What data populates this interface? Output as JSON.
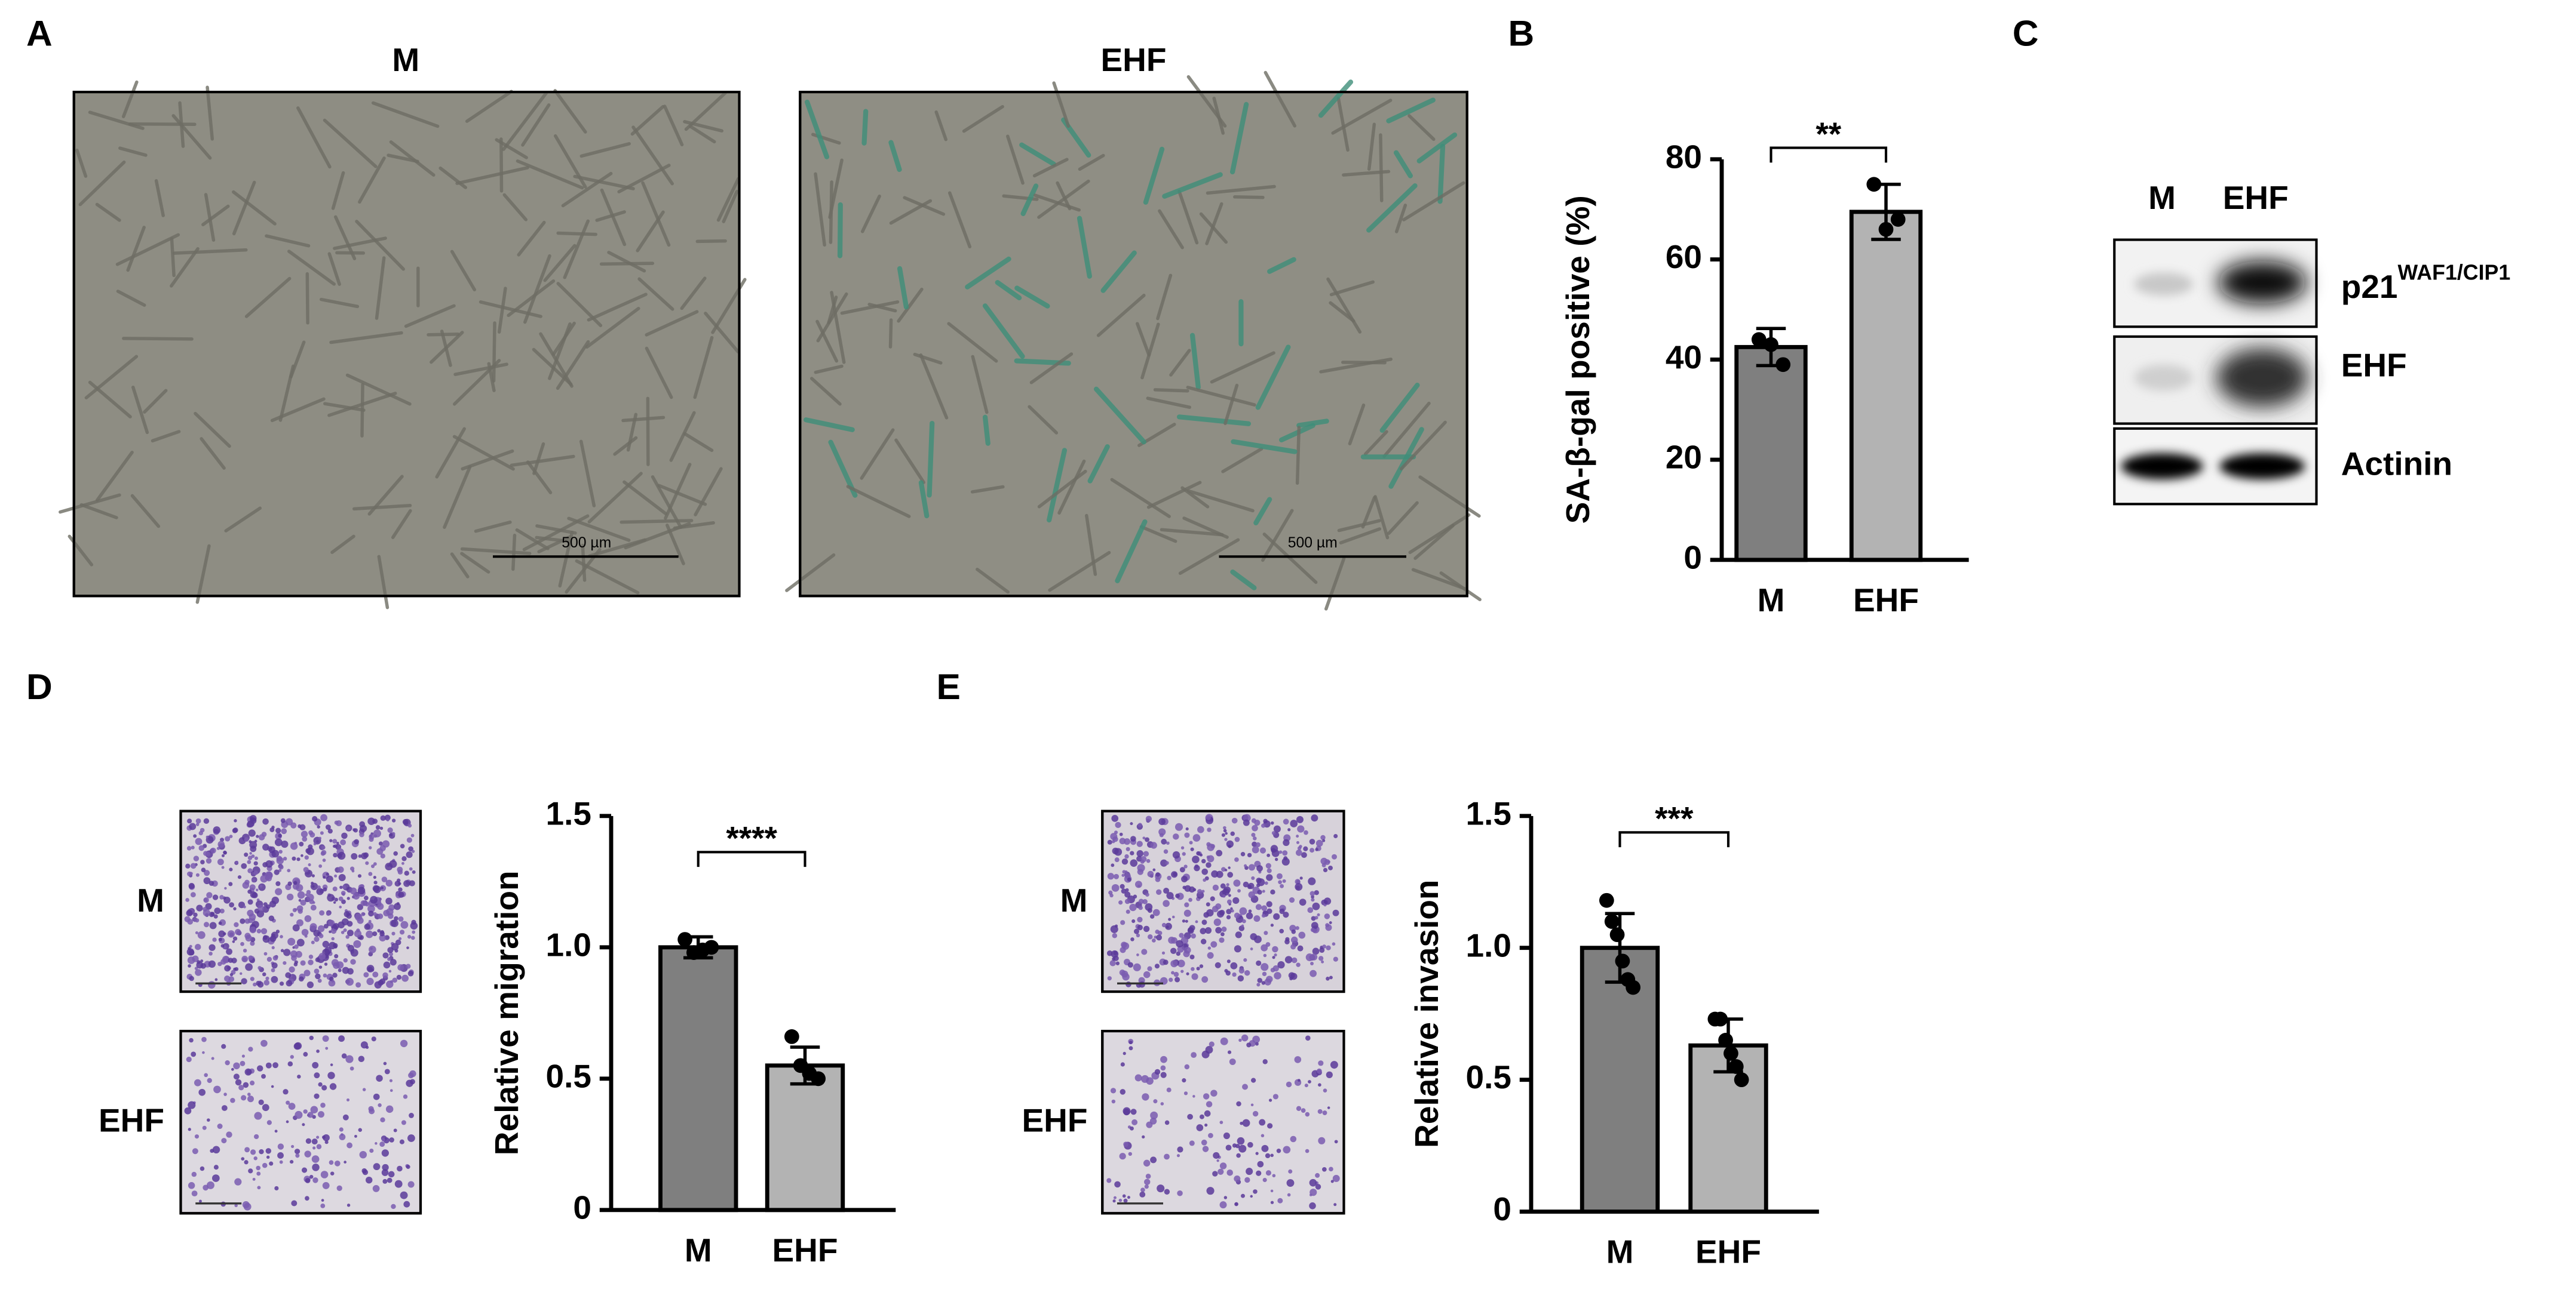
{
  "panel_labels": [
    "A",
    "B",
    "C",
    "D",
    "E"
  ],
  "panel_a": {
    "images": [
      {
        "label": "M",
        "scale_bar": "500 µm"
      },
      {
        "label": "EHF",
        "scale_bar": "500 µm"
      }
    ]
  },
  "panel_c": {
    "lanes": [
      "M",
      "EHF"
    ],
    "bands": [
      {
        "label": "p21",
        "superscript": "WAF1/CIP1"
      },
      {
        "label": "EHF"
      },
      {
        "label": "Actinin"
      }
    ]
  },
  "panel_d": {
    "images": [
      "M",
      "EHF"
    ]
  },
  "panel_e": {
    "images": [
      "M",
      "EHF"
    ]
  },
  "chart_data": [
    {
      "type": "bar",
      "ylabel": "SA-β-gal positive (%)",
      "categories": [
        "M",
        "EHF"
      ],
      "values": [
        42.5,
        69.5
      ],
      "errors": [
        3.7,
        5.5
      ],
      "points": [
        [
          44,
          43,
          39
        ],
        [
          75,
          66,
          68
        ]
      ],
      "colors": [
        "#7f7f7f",
        "#b3b3b3"
      ],
      "ylim": [
        0,
        80
      ],
      "yticks": [
        0,
        20,
        40,
        60,
        80
      ],
      "significance": "**"
    },
    {
      "type": "bar",
      "ylabel": "Relative migration",
      "categories": [
        "M",
        "EHF"
      ],
      "values": [
        1.0,
        0.55
      ],
      "errors": [
        0.04,
        0.07
      ],
      "points": [
        [
          1.03,
          0.98,
          0.99,
          1.0
        ],
        [
          0.66,
          0.55,
          0.52,
          0.5
        ]
      ],
      "colors": [
        "#7f7f7f",
        "#b3b3b3"
      ],
      "ylim": [
        0,
        1.5
      ],
      "yticks": [
        0,
        0.5,
        {
          "value": 1,
          "label": "1.0"
        },
        1.5
      ],
      "significance": "****"
    },
    {
      "type": "bar",
      "ylabel": "Relative invasion",
      "categories": [
        "M",
        "EHF"
      ],
      "values": [
        1.0,
        0.63
      ],
      "errors": [
        0.13,
        0.1
      ],
      "points": [
        [
          1.18,
          1.1,
          1.05,
          0.95,
          0.88,
          0.85
        ],
        [
          0.73,
          0.73,
          0.65,
          0.6,
          0.55,
          0.5
        ]
      ],
      "colors": [
        "#7f7f7f",
        "#b3b3b3"
      ],
      "ylim": [
        0,
        1.5
      ],
      "yticks": [
        0,
        0.5,
        {
          "value": 1,
          "label": "1.0"
        },
        1.5
      ],
      "significance": "***"
    }
  ]
}
